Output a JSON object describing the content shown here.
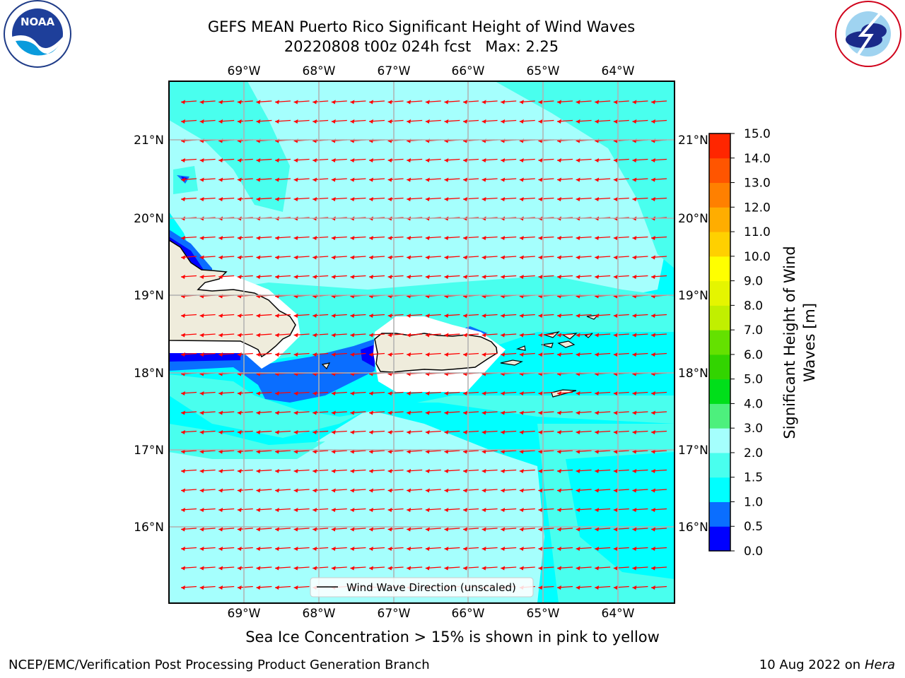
{
  "title": "GEFS MEAN Puerto Rico Significant Height of Wind Waves",
  "subtitle": "20220808 t00z 024h fcst   Max: 2.25",
  "note": "Sea Ice Concentration > 15% is shown in pink to yellow",
  "footer": {
    "credit": "NCEP/EMC/Verification Post Processing Product Generation Branch",
    "date": "10 Aug 2022 on",
    "host": "Hera"
  },
  "logos": {
    "left": "noaa-logo",
    "right": "nws-logo",
    "noaa_text": "NOAA"
  },
  "map": {
    "lon_labels": [
      "69°W",
      "68°W",
      "67°W",
      "66°W",
      "65°W",
      "64°W"
    ],
    "lat_labels": [
      "21°N",
      "20°N",
      "19°N",
      "18°N",
      "17°N",
      "16°N"
    ],
    "legend": "Wind Wave Direction (unscaled)",
    "arrow_color": "#ff0000",
    "land_color": "#efecdc",
    "ocean_color": "#00ffff"
  },
  "colorbar": {
    "label_line1": "Significant Height of Wind",
    "label_line2": "Waves [m]",
    "levels": [
      "0.0",
      "0.5",
      "1.0",
      "1.5",
      "2.0",
      "3.0",
      "4.0",
      "5.0",
      "6.0",
      "7.0",
      "8.0",
      "9.0",
      "10.0",
      "11.0",
      "12.0",
      "13.0",
      "14.0",
      "15.0"
    ],
    "colors": [
      "#0000ff",
      "#0a6eff",
      "#00ffff",
      "#49ffee",
      "#a5fffd",
      "#4df07d",
      "#00df1a",
      "#32d400",
      "#64e100",
      "#c1ef00",
      "#e5f500",
      "#ffff00",
      "#ffd000",
      "#ffad00",
      "#ff8000",
      "#ff5500",
      "#ff2600"
    ]
  }
}
